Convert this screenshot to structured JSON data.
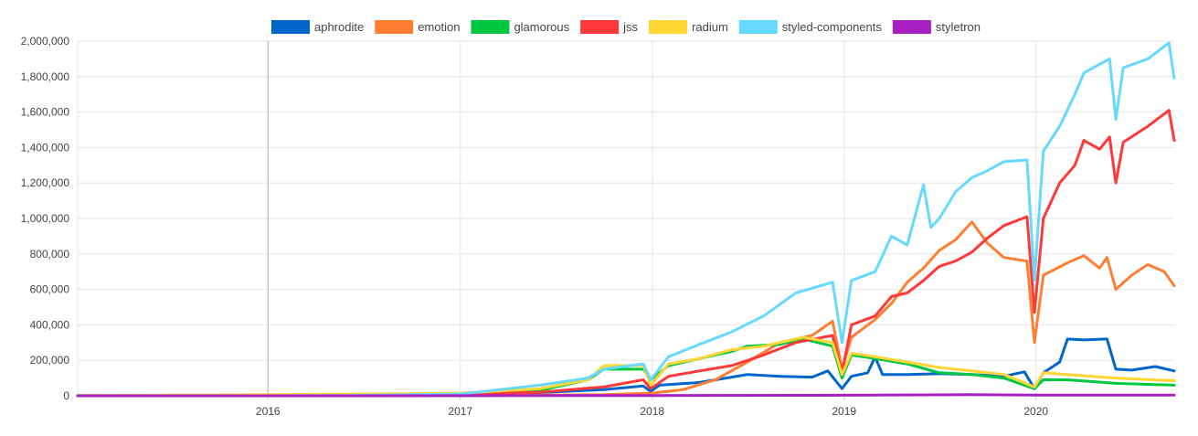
{
  "chart_data": {
    "type": "line",
    "title": "",
    "xlabel": "",
    "ylabel": "",
    "x_range": [
      "2015-01-04",
      "2020-09-20"
    ],
    "ylim": [
      0,
      2000000
    ],
    "y_ticks": [
      0,
      200000,
      400000,
      600000,
      800000,
      1000000,
      1200000,
      1400000,
      1600000,
      1800000,
      2000000
    ],
    "y_tick_labels": [
      "0",
      "200,000",
      "400,000",
      "600,000",
      "800,000",
      "1,000,000",
      "1,200,000",
      "1,400,000",
      "1,600,000",
      "1,800,000",
      "2,000,000"
    ],
    "x_ticks": [
      {
        "date": "2016-01-01",
        "label": "2016"
      },
      {
        "date": "2017-01-01",
        "label": "2017"
      },
      {
        "date": "2018-01-01",
        "label": "2018"
      },
      {
        "date": "2019-01-01",
        "label": "2019"
      },
      {
        "date": "2020-01-01",
        "label": "2020"
      }
    ],
    "highlight_line_date": "2016-01-01",
    "grid": true,
    "legend_position": "top",
    "series": [
      {
        "name": "aphrodite",
        "color": "#0066cc",
        "points": [
          [
            "2015-01-04",
            500
          ],
          [
            "2015-06-01",
            1000
          ],
          [
            "2016-01-01",
            2000
          ],
          [
            "2016-06-01",
            4000
          ],
          [
            "2017-01-01",
            8000
          ],
          [
            "2017-06-01",
            18000
          ],
          [
            "2017-10-01",
            35000
          ],
          [
            "2017-12-15",
            55000
          ],
          [
            "2017-12-29",
            25000
          ],
          [
            "2018-01-15",
            60000
          ],
          [
            "2018-04-01",
            75000
          ],
          [
            "2018-06-01",
            105000
          ],
          [
            "2018-07-01",
            120000
          ],
          [
            "2018-09-01",
            110000
          ],
          [
            "2018-11-01",
            105000
          ],
          [
            "2018-12-01",
            140000
          ],
          [
            "2018-12-28",
            40000
          ],
          [
            "2019-01-15",
            110000
          ],
          [
            "2019-02-15",
            130000
          ],
          [
            "2019-03-01",
            220000
          ],
          [
            "2019-03-15",
            120000
          ],
          [
            "2019-05-01",
            120000
          ],
          [
            "2019-07-01",
            125000
          ],
          [
            "2019-09-01",
            120000
          ],
          [
            "2019-11-01",
            110000
          ],
          [
            "2019-12-10",
            135000
          ],
          [
            "2019-12-29",
            40000
          ],
          [
            "2020-01-15",
            130000
          ],
          [
            "2020-02-15",
            190000
          ],
          [
            "2020-03-01",
            320000
          ],
          [
            "2020-04-01",
            315000
          ],
          [
            "2020-05-15",
            320000
          ],
          [
            "2020-06-01",
            150000
          ],
          [
            "2020-07-01",
            145000
          ],
          [
            "2020-08-15",
            165000
          ],
          [
            "2020-09-20",
            140000
          ]
        ]
      },
      {
        "name": "emotion",
        "color": "#ff7f32",
        "points": [
          [
            "2015-01-04",
            0
          ],
          [
            "2016-01-01",
            0
          ],
          [
            "2017-01-01",
            1000
          ],
          [
            "2017-06-01",
            3000
          ],
          [
            "2017-10-01",
            6000
          ],
          [
            "2018-01-01",
            15000
          ],
          [
            "2018-03-01",
            35000
          ],
          [
            "2018-05-01",
            90000
          ],
          [
            "2018-07-01",
            190000
          ],
          [
            "2018-09-01",
            300000
          ],
          [
            "2018-11-01",
            340000
          ],
          [
            "2018-12-10",
            420000
          ],
          [
            "2018-12-28",
            150000
          ],
          [
            "2019-01-15",
            330000
          ],
          [
            "2019-03-01",
            430000
          ],
          [
            "2019-04-01",
            520000
          ],
          [
            "2019-05-01",
            640000
          ],
          [
            "2019-06-01",
            720000
          ],
          [
            "2019-07-01",
            820000
          ],
          [
            "2019-08-01",
            880000
          ],
          [
            "2019-09-01",
            980000
          ],
          [
            "2019-10-01",
            860000
          ],
          [
            "2019-11-01",
            780000
          ],
          [
            "2019-12-15",
            760000
          ],
          [
            "2019-12-29",
            300000
          ],
          [
            "2020-01-15",
            680000
          ],
          [
            "2020-03-01",
            750000
          ],
          [
            "2020-04-01",
            790000
          ],
          [
            "2020-05-01",
            720000
          ],
          [
            "2020-05-15",
            780000
          ],
          [
            "2020-06-01",
            600000
          ],
          [
            "2020-07-01",
            680000
          ],
          [
            "2020-08-01",
            740000
          ],
          [
            "2020-09-01",
            700000
          ],
          [
            "2020-09-20",
            620000
          ]
        ]
      },
      {
        "name": "glamorous",
        "color": "#00c742",
        "points": [
          [
            "2015-01-04",
            0
          ],
          [
            "2016-01-01",
            0
          ],
          [
            "2017-01-01",
            5000
          ],
          [
            "2017-06-01",
            30000
          ],
          [
            "2017-09-01",
            90000
          ],
          [
            "2017-10-01",
            150000
          ],
          [
            "2017-12-15",
            150000
          ],
          [
            "2017-12-29",
            90000
          ],
          [
            "2018-02-01",
            170000
          ],
          [
            "2018-04-01",
            210000
          ],
          [
            "2018-06-01",
            250000
          ],
          [
            "2018-07-01",
            280000
          ],
          [
            "2018-09-01",
            290000
          ],
          [
            "2018-10-15",
            320000
          ],
          [
            "2018-12-10",
            280000
          ],
          [
            "2018-12-28",
            100000
          ],
          [
            "2019-01-15",
            230000
          ],
          [
            "2019-03-01",
            210000
          ],
          [
            "2019-05-01",
            180000
          ],
          [
            "2019-07-01",
            130000
          ],
          [
            "2019-09-01",
            120000
          ],
          [
            "2019-11-01",
            100000
          ],
          [
            "2019-12-29",
            40000
          ],
          [
            "2020-01-15",
            90000
          ],
          [
            "2020-03-01",
            90000
          ],
          [
            "2020-06-01",
            70000
          ],
          [
            "2020-09-20",
            60000
          ]
        ]
      },
      {
        "name": "jss",
        "color": "#ff3838",
        "points": [
          [
            "2015-01-04",
            0
          ],
          [
            "2015-06-01",
            1000
          ],
          [
            "2016-01-01",
            3000
          ],
          [
            "2016-06-01",
            6000
          ],
          [
            "2017-01-01",
            10000
          ],
          [
            "2017-06-01",
            20000
          ],
          [
            "2017-10-01",
            50000
          ],
          [
            "2017-12-15",
            90000
          ],
          [
            "2017-12-29",
            40000
          ],
          [
            "2018-02-01",
            110000
          ],
          [
            "2018-04-01",
            140000
          ],
          [
            "2018-06-01",
            170000
          ],
          [
            "2018-08-01",
            230000
          ],
          [
            "2018-10-01",
            300000
          ],
          [
            "2018-12-10",
            340000
          ],
          [
            "2018-12-28",
            130000
          ],
          [
            "2019-01-15",
            400000
          ],
          [
            "2019-03-01",
            450000
          ],
          [
            "2019-04-01",
            560000
          ],
          [
            "2019-05-01",
            580000
          ],
          [
            "2019-06-01",
            650000
          ],
          [
            "2019-07-01",
            730000
          ],
          [
            "2019-08-01",
            760000
          ],
          [
            "2019-09-01",
            810000
          ],
          [
            "2019-10-01",
            890000
          ],
          [
            "2019-11-01",
            960000
          ],
          [
            "2019-12-15",
            1010000
          ],
          [
            "2019-12-29",
            470000
          ],
          [
            "2020-01-15",
            1000000
          ],
          [
            "2020-02-15",
            1200000
          ],
          [
            "2020-03-15",
            1300000
          ],
          [
            "2020-04-01",
            1440000
          ],
          [
            "2020-05-01",
            1390000
          ],
          [
            "2020-05-20",
            1460000
          ],
          [
            "2020-06-01",
            1200000
          ],
          [
            "2020-06-15",
            1430000
          ],
          [
            "2020-08-01",
            1520000
          ],
          [
            "2020-09-10",
            1610000
          ],
          [
            "2020-09-20",
            1440000
          ]
        ]
      },
      {
        "name": "radium",
        "color": "#ffd633",
        "points": [
          [
            "2015-01-04",
            1000
          ],
          [
            "2015-06-01",
            3000
          ],
          [
            "2016-01-01",
            6000
          ],
          [
            "2016-06-01",
            10000
          ],
          [
            "2017-01-01",
            15000
          ],
          [
            "2017-06-01",
            40000
          ],
          [
            "2017-09-01",
            90000
          ],
          [
            "2017-10-01",
            170000
          ],
          [
            "2017-12-15",
            170000
          ],
          [
            "2017-12-29",
            60000
          ],
          [
            "2018-02-01",
            180000
          ],
          [
            "2018-04-01",
            210000
          ],
          [
            "2018-06-01",
            260000
          ],
          [
            "2018-08-01",
            280000
          ],
          [
            "2018-10-15",
            330000
          ],
          [
            "2018-12-10",
            300000
          ],
          [
            "2018-12-28",
            120000
          ],
          [
            "2019-01-15",
            240000
          ],
          [
            "2019-03-01",
            220000
          ],
          [
            "2019-05-01",
            190000
          ],
          [
            "2019-07-01",
            160000
          ],
          [
            "2019-09-01",
            140000
          ],
          [
            "2019-11-01",
            120000
          ],
          [
            "2019-12-29",
            50000
          ],
          [
            "2020-01-15",
            130000
          ],
          [
            "2020-03-01",
            120000
          ],
          [
            "2020-06-01",
            100000
          ],
          [
            "2020-09-20",
            85000
          ]
        ]
      },
      {
        "name": "styled-components",
        "color": "#66d9ff",
        "points": [
          [
            "2015-01-04",
            0
          ],
          [
            "2016-01-01",
            0
          ],
          [
            "2016-06-01",
            2000
          ],
          [
            "2017-01-01",
            10000
          ],
          [
            "2017-06-01",
            60000
          ],
          [
            "2017-09-01",
            100000
          ],
          [
            "2017-10-01",
            150000
          ],
          [
            "2017-12-15",
            180000
          ],
          [
            "2017-12-29",
            90000
          ],
          [
            "2018-02-01",
            220000
          ],
          [
            "2018-04-01",
            290000
          ],
          [
            "2018-06-01",
            360000
          ],
          [
            "2018-08-01",
            450000
          ],
          [
            "2018-10-01",
            580000
          ],
          [
            "2018-12-10",
            640000
          ],
          [
            "2018-12-28",
            300000
          ],
          [
            "2019-01-15",
            650000
          ],
          [
            "2019-03-01",
            700000
          ],
          [
            "2019-04-01",
            900000
          ],
          [
            "2019-05-01",
            850000
          ],
          [
            "2019-06-01",
            1190000
          ],
          [
            "2019-06-15",
            950000
          ],
          [
            "2019-07-01",
            1000000
          ],
          [
            "2019-08-01",
            1150000
          ],
          [
            "2019-09-01",
            1230000
          ],
          [
            "2019-10-01",
            1270000
          ],
          [
            "2019-11-01",
            1320000
          ],
          [
            "2019-12-15",
            1330000
          ],
          [
            "2019-12-29",
            650000
          ],
          [
            "2020-01-15",
            1380000
          ],
          [
            "2020-02-15",
            1520000
          ],
          [
            "2020-03-15",
            1700000
          ],
          [
            "2020-04-01",
            1820000
          ],
          [
            "2020-05-01",
            1870000
          ],
          [
            "2020-05-20",
            1900000
          ],
          [
            "2020-06-01",
            1560000
          ],
          [
            "2020-06-15",
            1850000
          ],
          [
            "2020-08-01",
            1900000
          ],
          [
            "2020-09-10",
            1990000
          ],
          [
            "2020-09-20",
            1790000
          ]
        ]
      },
      {
        "name": "styletron",
        "color": "#a81fc2",
        "points": [
          [
            "2015-01-04",
            0
          ],
          [
            "2016-01-01",
            0
          ],
          [
            "2017-01-01",
            500
          ],
          [
            "2018-01-01",
            1500
          ],
          [
            "2019-01-01",
            3000
          ],
          [
            "2019-09-01",
            6000
          ],
          [
            "2020-01-01",
            4000
          ],
          [
            "2020-09-20",
            4000
          ]
        ]
      }
    ]
  }
}
